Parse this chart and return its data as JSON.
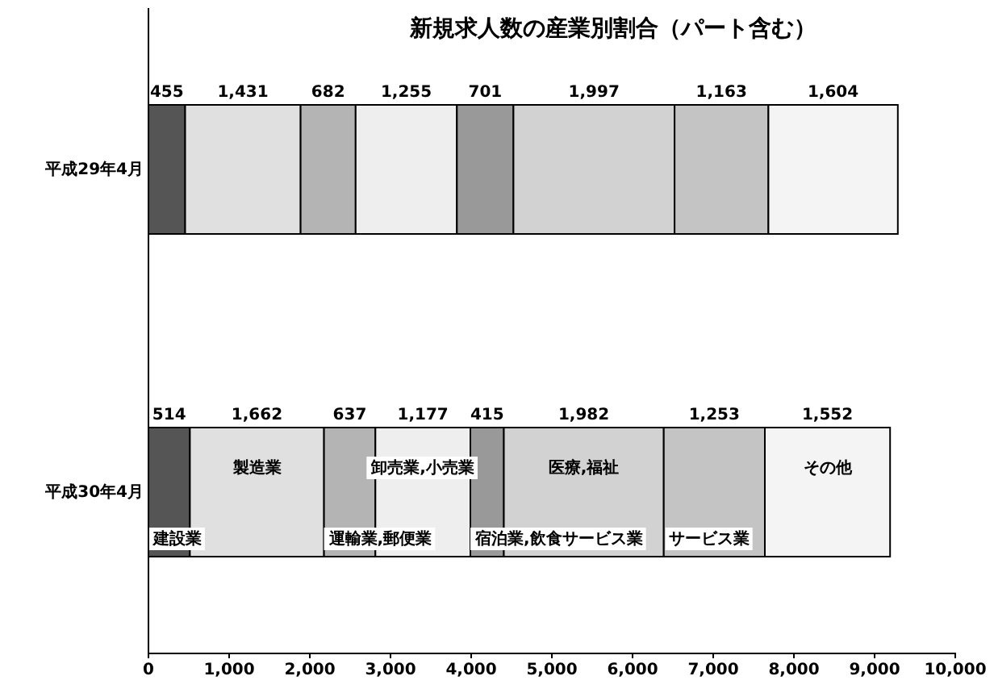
{
  "chart_data": {
    "type": "bar",
    "orientation": "horizontal",
    "stacked": true,
    "title": "新規求人数の産業別割合（パート含む）",
    "categories": [
      "平成29年4月",
      "平成30年4月"
    ],
    "series": [
      {
        "name": "建設業",
        "color": "#555555",
        "values": [
          455,
          514
        ],
        "value_labels": [
          "455",
          "514"
        ]
      },
      {
        "name": "製造業",
        "color": "#e0e0e0",
        "values": [
          1431,
          1662
        ],
        "value_labels": [
          "1,431",
          "1,662"
        ]
      },
      {
        "name": "運輸業,郵便業",
        "color": "#b4b4b4",
        "values": [
          682,
          637
        ],
        "value_labels": [
          "682",
          "637"
        ]
      },
      {
        "name": "卸売業,小売業",
        "color": "#eeeeee",
        "values": [
          1255,
          1177
        ],
        "value_labels": [
          "1,255",
          "1,177"
        ]
      },
      {
        "name": "宿泊業,飲食サービス業",
        "color": "#999999",
        "values": [
          701,
          415
        ],
        "value_labels": [
          "701",
          "415"
        ]
      },
      {
        "name": "医療,福祉",
        "color": "#d2d2d2",
        "values": [
          1997,
          1982
        ],
        "value_labels": [
          "1,997",
          "1,982"
        ]
      },
      {
        "name": "サービス業",
        "color": "#c4c4c4",
        "values": [
          1163,
          1253
        ],
        "value_labels": [
          "1,163",
          "1,253"
        ]
      },
      {
        "name": "その他",
        "color": "#f4f4f4",
        "values": [
          1604,
          1552
        ],
        "value_labels": [
          "1,604",
          "1,552"
        ]
      }
    ],
    "xlim": [
      0,
      10000
    ],
    "xticks": [
      0,
      {
        "value": 1000,
        "label": "1,000"
      },
      {
        "value": 2000,
        "label": "2,000"
      },
      {
        "value": 3000,
        "label": "3,000"
      },
      {
        "value": 4000,
        "label": "4,000"
      },
      {
        "value": 5000,
        "label": "5,000"
      },
      {
        "value": 6000,
        "label": "6,000"
      },
      {
        "value": 7000,
        "label": "7,000"
      },
      {
        "value": 8000,
        "label": "8,000"
      },
      {
        "value": 9000,
        "label": "9,000"
      },
      {
        "value": 10000,
        "label": "10,000"
      }
    ],
    "grid": false
  }
}
